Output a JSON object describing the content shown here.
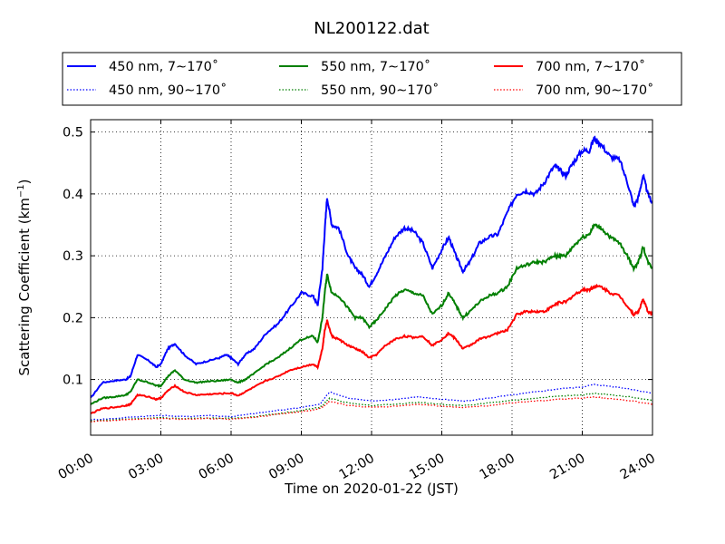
{
  "chart_data": {
    "type": "line",
    "title": "NL200122.dat",
    "xlabel": "Time on 2020-01-22 (JST)",
    "ylabel_main": "Scattering Coefficient (km",
    "ylabel_sup": "−1",
    "ylabel_end": ")",
    "xlim": [
      0,
      24
    ],
    "ylim": [
      0.01,
      0.52
    ],
    "x_unit": "hours",
    "x_ticks": [
      0,
      3,
      6,
      9,
      12,
      15,
      18,
      21,
      24
    ],
    "x_tick_labels": [
      "00:00",
      "03:00",
      "06:00",
      "09:00",
      "12:00",
      "15:00",
      "18:00",
      "21:00",
      "24:00"
    ],
    "y_ticks": [
      0.1,
      0.2,
      0.3,
      0.4,
      0.5
    ],
    "y_tick_labels": [
      "0.1",
      "0.2",
      "0.3",
      "0.4",
      "0.5"
    ],
    "grid": true,
    "legend_position": "top-outside",
    "series": [
      {
        "name": "450 nm, 7∼170˚",
        "color": "#0000ff",
        "style": "solid",
        "x": [
          0,
          0.5,
          1,
          1.5,
          1.7,
          2,
          2.5,
          2.8,
          3,
          3.3,
          3.6,
          4,
          4.5,
          5,
          5.5,
          5.8,
          6,
          6.3,
          6.6,
          7,
          7.5,
          8,
          8.5,
          9,
          9.5,
          9.7,
          9.9,
          10,
          10.1,
          10.3,
          10.6,
          11,
          11.3,
          11.6,
          11.9,
          12.2,
          12.6,
          13,
          13.4,
          13.8,
          14.2,
          14.6,
          15,
          15.3,
          15.6,
          15.9,
          16.2,
          16.6,
          17,
          17.4,
          17.8,
          18.2,
          18.6,
          19,
          19.4,
          19.8,
          20,
          20.3,
          20.6,
          21,
          21.3,
          21.5,
          21.8,
          22.2,
          22.6,
          23,
          23.2,
          23.4,
          23.6,
          23.8,
          24
        ],
        "y": [
          0.07,
          0.095,
          0.098,
          0.1,
          0.105,
          0.14,
          0.13,
          0.12,
          0.125,
          0.15,
          0.158,
          0.14,
          0.125,
          0.13,
          0.135,
          0.14,
          0.135,
          0.125,
          0.14,
          0.15,
          0.175,
          0.19,
          0.215,
          0.24,
          0.235,
          0.22,
          0.28,
          0.34,
          0.395,
          0.35,
          0.345,
          0.3,
          0.28,
          0.27,
          0.25,
          0.27,
          0.3,
          0.33,
          0.345,
          0.34,
          0.32,
          0.28,
          0.31,
          0.33,
          0.3,
          0.275,
          0.29,
          0.32,
          0.33,
          0.335,
          0.37,
          0.4,
          0.405,
          0.4,
          0.42,
          0.445,
          0.44,
          0.43,
          0.45,
          0.47,
          0.47,
          0.49,
          0.48,
          0.46,
          0.455,
          0.41,
          0.38,
          0.395,
          0.43,
          0.4,
          0.385
        ]
      },
      {
        "name": "450 nm, 90∼170˚",
        "color": "#0000ff",
        "style": "dotted",
        "x": [
          0,
          1,
          2,
          3,
          4,
          5,
          6,
          7,
          8,
          9,
          9.8,
          10,
          10.2,
          11,
          12,
          13,
          14,
          15,
          16,
          17,
          18,
          19,
          20,
          21,
          21.5,
          22,
          23,
          24
        ],
        "y": [
          0.035,
          0.037,
          0.04,
          0.042,
          0.04,
          0.042,
          0.04,
          0.045,
          0.05,
          0.055,
          0.06,
          0.07,
          0.08,
          0.07,
          0.065,
          0.068,
          0.072,
          0.068,
          0.065,
          0.07,
          0.075,
          0.08,
          0.085,
          0.088,
          0.092,
          0.09,
          0.085,
          0.078
        ]
      },
      {
        "name": "550 nm, 7∼170˚",
        "color": "#007f00",
        "style": "solid",
        "x": [
          0,
          0.5,
          1,
          1.5,
          1.7,
          2,
          2.5,
          2.8,
          3,
          3.3,
          3.6,
          4,
          4.5,
          5,
          5.5,
          6,
          6.3,
          6.6,
          7,
          7.5,
          8,
          8.5,
          9,
          9.5,
          9.7,
          9.9,
          10,
          10.1,
          10.3,
          10.6,
          11,
          11.3,
          11.6,
          11.9,
          12.2,
          12.6,
          13,
          13.4,
          13.8,
          14.2,
          14.6,
          15,
          15.3,
          15.6,
          15.9,
          16.2,
          16.6,
          17,
          17.4,
          17.8,
          18.2,
          18.6,
          19,
          19.4,
          19.8,
          20,
          20.3,
          20.6,
          21,
          21.3,
          21.5,
          21.8,
          22.2,
          22.6,
          23,
          23.2,
          23.4,
          23.6,
          23.8,
          24
        ],
        "y": [
          0.06,
          0.07,
          0.072,
          0.075,
          0.08,
          0.1,
          0.095,
          0.09,
          0.09,
          0.105,
          0.115,
          0.1,
          0.095,
          0.097,
          0.098,
          0.1,
          0.095,
          0.1,
          0.11,
          0.125,
          0.135,
          0.15,
          0.165,
          0.17,
          0.16,
          0.2,
          0.24,
          0.27,
          0.24,
          0.235,
          0.215,
          0.2,
          0.2,
          0.185,
          0.195,
          0.215,
          0.235,
          0.245,
          0.24,
          0.235,
          0.205,
          0.22,
          0.24,
          0.22,
          0.2,
          0.21,
          0.225,
          0.235,
          0.24,
          0.25,
          0.28,
          0.285,
          0.29,
          0.29,
          0.3,
          0.3,
          0.3,
          0.315,
          0.33,
          0.335,
          0.35,
          0.345,
          0.33,
          0.32,
          0.295,
          0.28,
          0.29,
          0.315,
          0.29,
          0.28
        ]
      },
      {
        "name": "550 nm, 90∼170˚",
        "color": "#007f00",
        "style": "dotted",
        "x": [
          0,
          1,
          2,
          3,
          4,
          5,
          6,
          7,
          8,
          9,
          9.8,
          10,
          10.2,
          11,
          12,
          13,
          14,
          15,
          16,
          17,
          18,
          19,
          20,
          21,
          21.5,
          22,
          23,
          24
        ],
        "y": [
          0.033,
          0.035,
          0.037,
          0.038,
          0.037,
          0.038,
          0.037,
          0.04,
          0.045,
          0.05,
          0.055,
          0.062,
          0.07,
          0.062,
          0.058,
          0.06,
          0.063,
          0.06,
          0.058,
          0.062,
          0.066,
          0.07,
          0.073,
          0.075,
          0.078,
          0.076,
          0.072,
          0.066
        ]
      },
      {
        "name": "700 nm, 7∼170˚",
        "color": "#ff0000",
        "style": "solid",
        "x": [
          0,
          0.5,
          1,
          1.5,
          1.7,
          2,
          2.5,
          2.8,
          3,
          3.3,
          3.6,
          4,
          4.5,
          5,
          5.5,
          6,
          6.3,
          6.6,
          7,
          7.5,
          8,
          8.5,
          9,
          9.5,
          9.7,
          9.9,
          10,
          10.1,
          10.3,
          10.6,
          11,
          11.3,
          11.6,
          11.9,
          12.2,
          12.6,
          13,
          13.4,
          13.8,
          14.2,
          14.6,
          15,
          15.3,
          15.6,
          15.9,
          16.2,
          16.6,
          17,
          17.4,
          17.8,
          18.2,
          18.6,
          19,
          19.4,
          19.8,
          20,
          20.3,
          20.6,
          21,
          21.3,
          21.5,
          21.8,
          22.2,
          22.6,
          23,
          23.2,
          23.4,
          23.6,
          23.8,
          24
        ],
        "y": [
          0.045,
          0.053,
          0.055,
          0.058,
          0.06,
          0.075,
          0.072,
          0.068,
          0.07,
          0.082,
          0.09,
          0.08,
          0.075,
          0.076,
          0.077,
          0.078,
          0.074,
          0.08,
          0.088,
          0.098,
          0.105,
          0.115,
          0.12,
          0.125,
          0.12,
          0.15,
          0.18,
          0.195,
          0.17,
          0.165,
          0.155,
          0.15,
          0.145,
          0.135,
          0.14,
          0.155,
          0.165,
          0.17,
          0.168,
          0.17,
          0.155,
          0.165,
          0.175,
          0.165,
          0.15,
          0.155,
          0.165,
          0.17,
          0.175,
          0.18,
          0.205,
          0.21,
          0.21,
          0.21,
          0.22,
          0.225,
          0.225,
          0.235,
          0.245,
          0.245,
          0.25,
          0.25,
          0.24,
          0.235,
          0.215,
          0.205,
          0.21,
          0.23,
          0.21,
          0.205
        ]
      },
      {
        "name": "700 nm, 90∼170˚",
        "color": "#ff0000",
        "style": "dotted",
        "x": [
          0,
          1,
          2,
          3,
          4,
          5,
          6,
          7,
          8,
          9,
          9.8,
          10,
          10.2,
          11,
          12,
          13,
          14,
          15,
          16,
          17,
          18,
          19,
          20,
          21,
          21.5,
          22,
          23,
          24
        ],
        "y": [
          0.032,
          0.034,
          0.036,
          0.037,
          0.036,
          0.037,
          0.036,
          0.039,
          0.044,
          0.048,
          0.053,
          0.058,
          0.065,
          0.058,
          0.055,
          0.057,
          0.06,
          0.057,
          0.055,
          0.058,
          0.062,
          0.065,
          0.068,
          0.07,
          0.072,
          0.07,
          0.066,
          0.06
        ]
      }
    ]
  }
}
